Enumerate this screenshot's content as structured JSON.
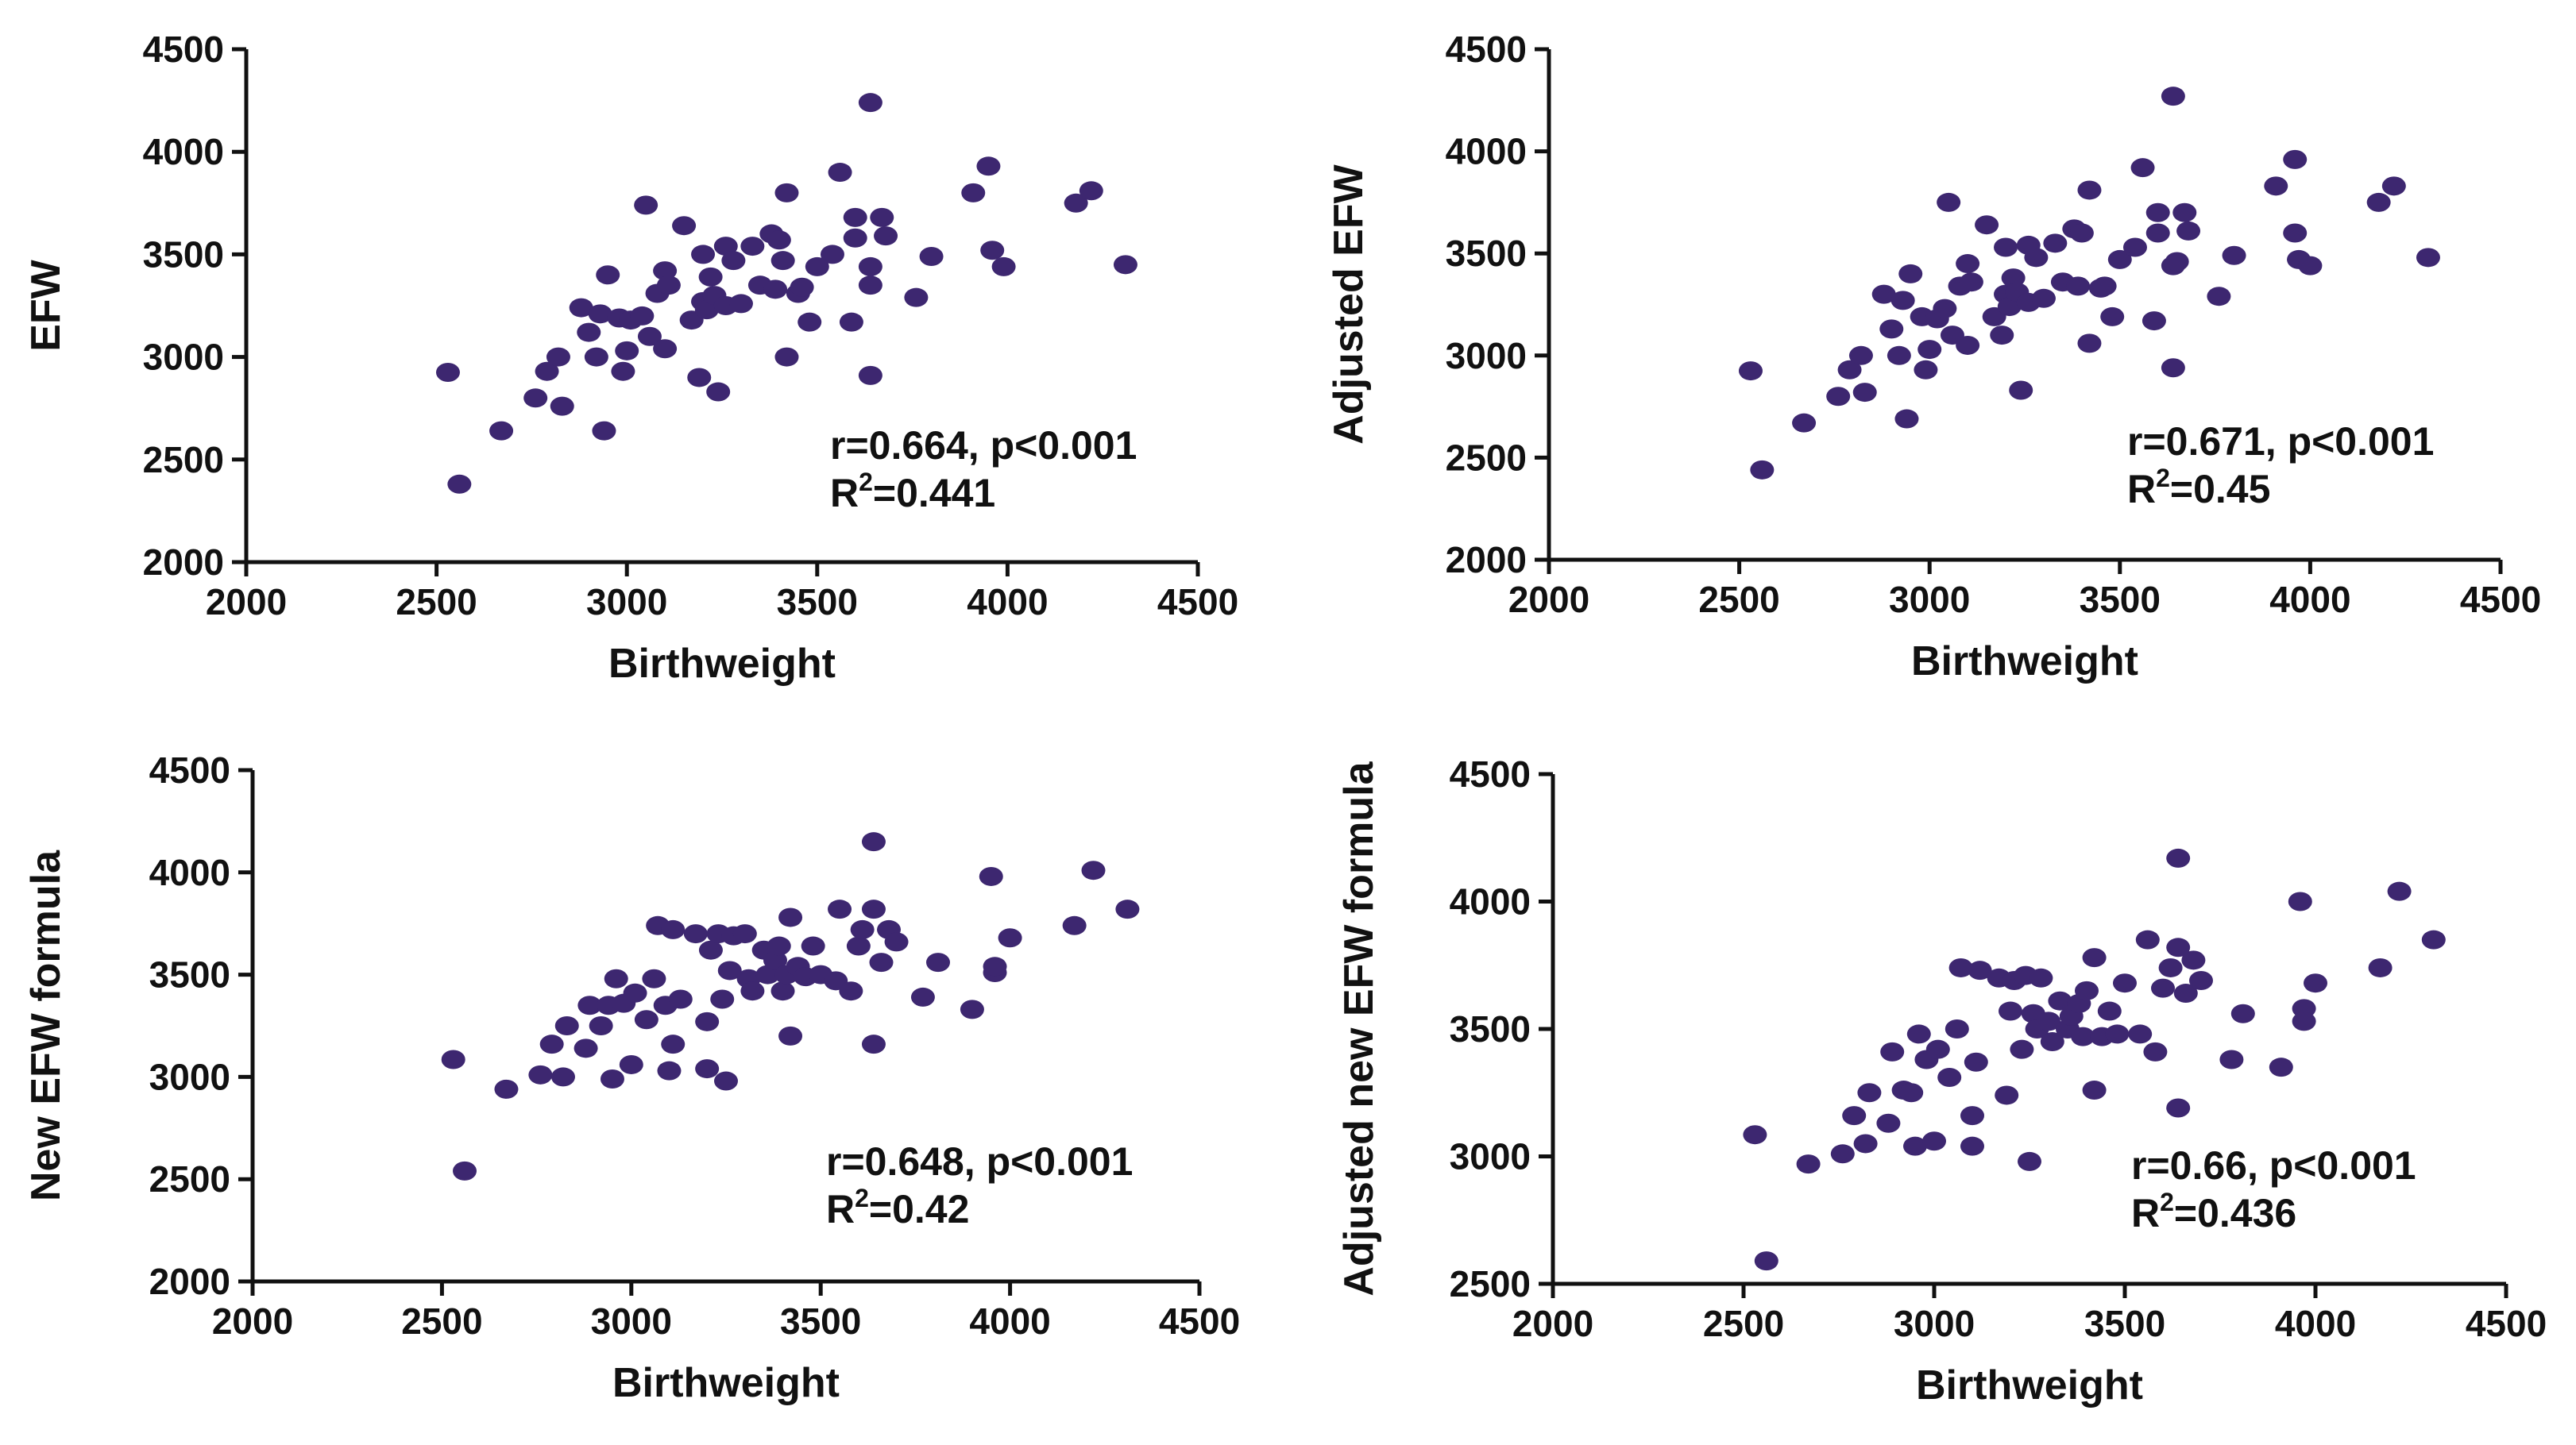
{
  "chart_data": [
    {
      "type": "scatter",
      "xlabel": "Birthweight",
      "ylabel": "EFW",
      "xlim": [
        2000,
        4500
      ],
      "ylim": [
        2000,
        4500
      ],
      "xticks": [
        "2000",
        "2500",
        "3000",
        "3500",
        "4000",
        "4500"
      ],
      "yticks": [
        "2000",
        "2500",
        "3000",
        "3500",
        "4000",
        "4500"
      ],
      "annotation_line1": "r=0.664, p<0.001",
      "annotation_r2_value": "=0.441",
      "color": "#3d2770",
      "points": [
        [
          2530,
          2925
        ],
        [
          2560,
          2380
        ],
        [
          2670,
          2640
        ],
        [
          2760,
          2800
        ],
        [
          2790,
          2930
        ],
        [
          2820,
          3000
        ],
        [
          2830,
          2760
        ],
        [
          2880,
          3240
        ],
        [
          2900,
          3120
        ],
        [
          2920,
          3000
        ],
        [
          2930,
          3210
        ],
        [
          2940,
          2640
        ],
        [
          2950,
          3400
        ],
        [
          2980,
          3190
        ],
        [
          2990,
          2930
        ],
        [
          3000,
          3030
        ],
        [
          3010,
          3180
        ],
        [
          3040,
          3200
        ],
        [
          3050,
          3740
        ],
        [
          3060,
          3100
        ],
        [
          3080,
          3310
        ],
        [
          3100,
          3040
        ],
        [
          3100,
          3420
        ],
        [
          3110,
          3350
        ],
        [
          3150,
          3640
        ],
        [
          3170,
          3180
        ],
        [
          3190,
          2900
        ],
        [
          3200,
          3500
        ],
        [
          3200,
          3270
        ],
        [
          3210,
          3230
        ],
        [
          3220,
          3390
        ],
        [
          3230,
          3300
        ],
        [
          3240,
          2830
        ],
        [
          3260,
          3540
        ],
        [
          3260,
          3250
        ],
        [
          3280,
          3470
        ],
        [
          3300,
          3260
        ],
        [
          3330,
          3540
        ],
        [
          3350,
          3350
        ],
        [
          3380,
          3600
        ],
        [
          3390,
          3330
        ],
        [
          3400,
          3570
        ],
        [
          3410,
          3470
        ],
        [
          3420,
          3800
        ],
        [
          3420,
          3000
        ],
        [
          3450,
          3310
        ],
        [
          3460,
          3340
        ],
        [
          3480,
          3170
        ],
        [
          3500,
          3440
        ],
        [
          3540,
          3500
        ],
        [
          3560,
          3900
        ],
        [
          3590,
          3170
        ],
        [
          3600,
          3580
        ],
        [
          3600,
          3680
        ],
        [
          3640,
          4240
        ],
        [
          3640,
          3350
        ],
        [
          3640,
          3440
        ],
        [
          3640,
          2910
        ],
        [
          3670,
          3680
        ],
        [
          3680,
          3590
        ],
        [
          3760,
          3290
        ],
        [
          3800,
          3490
        ],
        [
          3910,
          3800
        ],
        [
          3950,
          3930
        ],
        [
          3960,
          3520
        ],
        [
          3990,
          3440
        ],
        [
          4180,
          3750
        ],
        [
          4220,
          3810
        ],
        [
          4310,
          3450
        ]
      ]
    },
    {
      "type": "scatter",
      "xlabel": "Birthweight",
      "ylabel": "Adjusted EFW",
      "xlim": [
        2000,
        4500
      ],
      "ylim": [
        2000,
        4500
      ],
      "xticks": [
        "2000",
        "2500",
        "3000",
        "3500",
        "4000",
        "4500"
      ],
      "yticks": [
        "2000",
        "2500",
        "3000",
        "3500",
        "4000",
        "4500"
      ],
      "annotation_line1": "r=0.671, p<0.001",
      "annotation_r2_value": "=0.45",
      "color": "#3d2770",
      "points": [
        [
          2530,
          2925
        ],
        [
          2560,
          2440
        ],
        [
          2670,
          2670
        ],
        [
          2760,
          2800
        ],
        [
          2790,
          2930
        ],
        [
          2820,
          3000
        ],
        [
          2830,
          2820
        ],
        [
          2880,
          3300
        ],
        [
          2900,
          3130
        ],
        [
          2920,
          3000
        ],
        [
          2930,
          3270
        ],
        [
          2940,
          2690
        ],
        [
          2950,
          3400
        ],
        [
          2980,
          3190
        ],
        [
          2990,
          2930
        ],
        [
          3000,
          3030
        ],
        [
          3020,
          3180
        ],
        [
          3040,
          3230
        ],
        [
          3050,
          3750
        ],
        [
          3060,
          3100
        ],
        [
          3080,
          3340
        ],
        [
          3100,
          3050
        ],
        [
          3100,
          3450
        ],
        [
          3110,
          3360
        ],
        [
          3150,
          3640
        ],
        [
          3170,
          3190
        ],
        [
          3190,
          3100
        ],
        [
          3200,
          3530
        ],
        [
          3200,
          3300
        ],
        [
          3210,
          3240
        ],
        [
          3220,
          3380
        ],
        [
          3230,
          3310
        ],
        [
          3240,
          2830
        ],
        [
          3260,
          3540
        ],
        [
          3260,
          3260
        ],
        [
          3280,
          3480
        ],
        [
          3300,
          3280
        ],
        [
          3330,
          3550
        ],
        [
          3350,
          3360
        ],
        [
          3380,
          3620
        ],
        [
          3390,
          3340
        ],
        [
          3400,
          3600
        ],
        [
          3420,
          3810
        ],
        [
          3420,
          3060
        ],
        [
          3450,
          3330
        ],
        [
          3460,
          3340
        ],
        [
          3480,
          3190
        ],
        [
          3500,
          3470
        ],
        [
          3540,
          3530
        ],
        [
          3560,
          3920
        ],
        [
          3590,
          3170
        ],
        [
          3600,
          3600
        ],
        [
          3600,
          3700
        ],
        [
          3640,
          4270
        ],
        [
          3640,
          3440
        ],
        [
          3650,
          3460
        ],
        [
          3640,
          2940
        ],
        [
          3670,
          3700
        ],
        [
          3680,
          3610
        ],
        [
          3760,
          3290
        ],
        [
          3800,
          3490
        ],
        [
          3910,
          3830
        ],
        [
          3960,
          3960
        ],
        [
          3960,
          3600
        ],
        [
          3970,
          3470
        ],
        [
          4000,
          3440
        ],
        [
          4180,
          3750
        ],
        [
          4220,
          3830
        ],
        [
          4310,
          3480
        ]
      ]
    },
    {
      "type": "scatter",
      "xlabel": "Birthweight",
      "ylabel": "New EFW formula",
      "xlim": [
        2000,
        4500
      ],
      "ylim": [
        2000,
        4500
      ],
      "xticks": [
        "2000",
        "2500",
        "3000",
        "3500",
        "4000",
        "4500"
      ],
      "yticks": [
        "2000",
        "2500",
        "3000",
        "3500",
        "4000",
        "4500"
      ],
      "annotation_line1": "r=0.648, p<0.001",
      "annotation_r2_value": "=0.42",
      "color": "#3d2770",
      "points": [
        [
          2530,
          3085
        ],
        [
          2560,
          2540
        ],
        [
          2670,
          2940
        ],
        [
          2760,
          3010
        ],
        [
          2790,
          3160
        ],
        [
          2820,
          3000
        ],
        [
          2830,
          3250
        ],
        [
          2880,
          3140
        ],
        [
          2890,
          3350
        ],
        [
          2920,
          3250
        ],
        [
          2940,
          3350
        ],
        [
          2950,
          2990
        ],
        [
          2960,
          3480
        ],
        [
          2980,
          3360
        ],
        [
          3000,
          3060
        ],
        [
          3010,
          3410
        ],
        [
          3040,
          3280
        ],
        [
          3060,
          3480
        ],
        [
          3070,
          3740
        ],
        [
          3090,
          3350
        ],
        [
          3100,
          3030
        ],
        [
          3110,
          3160
        ],
        [
          3110,
          3720
        ],
        [
          3130,
          3380
        ],
        [
          3170,
          3700
        ],
        [
          3200,
          3040
        ],
        [
          3200,
          3270
        ],
        [
          3210,
          3620
        ],
        [
          3230,
          3700
        ],
        [
          3240,
          3380
        ],
        [
          3250,
          2980
        ],
        [
          3260,
          3520
        ],
        [
          3270,
          3690
        ],
        [
          3300,
          3700
        ],
        [
          3310,
          3480
        ],
        [
          3320,
          3420
        ],
        [
          3350,
          3620
        ],
        [
          3360,
          3500
        ],
        [
          3380,
          3570
        ],
        [
          3390,
          3640
        ],
        [
          3400,
          3420
        ],
        [
          3410,
          3500
        ],
        [
          3420,
          3200
        ],
        [
          3420,
          3780
        ],
        [
          3440,
          3540
        ],
        [
          3460,
          3490
        ],
        [
          3480,
          3640
        ],
        [
          3500,
          3500
        ],
        [
          3540,
          3470
        ],
        [
          3550,
          3820
        ],
        [
          3580,
          3420
        ],
        [
          3600,
          3640
        ],
        [
          3610,
          3720
        ],
        [
          3640,
          3820
        ],
        [
          3640,
          3160
        ],
        [
          3640,
          4150
        ],
        [
          3660,
          3560
        ],
        [
          3680,
          3720
        ],
        [
          3700,
          3660
        ],
        [
          3770,
          3390
        ],
        [
          3810,
          3560
        ],
        [
          3900,
          3330
        ],
        [
          3950,
          3980
        ],
        [
          3960,
          3510
        ],
        [
          3960,
          3540
        ],
        [
          4000,
          3680
        ],
        [
          4170,
          3740
        ],
        [
          4220,
          4010
        ],
        [
          4310,
          3820
        ]
      ]
    },
    {
      "type": "scatter",
      "xlabel": "Birthweight",
      "ylabel": "Adjusted new EFW formula",
      "xlim": [
        2000,
        4500
      ],
      "ylim": [
        2500,
        4500
      ],
      "xticks": [
        "2000",
        "2500",
        "3000",
        "3500",
        "4000",
        "4500"
      ],
      "yticks": [
        "2500",
        "3000",
        "3500",
        "4000",
        "4500"
      ],
      "annotation_line1": "r=0.66, p<0.001",
      "annotation_r2_value": "=0.436",
      "color": "#3d2770",
      "points": [
        [
          2530,
          3085
        ],
        [
          2560,
          2590
        ],
        [
          2670,
          2970
        ],
        [
          2760,
          3010
        ],
        [
          2790,
          3160
        ],
        [
          2820,
          3050
        ],
        [
          2830,
          3250
        ],
        [
          2880,
          3130
        ],
        [
          2890,
          3410
        ],
        [
          2920,
          3260
        ],
        [
          2940,
          3250
        ],
        [
          2950,
          3040
        ],
        [
          2960,
          3480
        ],
        [
          2980,
          3380
        ],
        [
          3000,
          3060
        ],
        [
          3010,
          3420
        ],
        [
          3040,
          3310
        ],
        [
          3060,
          3500
        ],
        [
          3070,
          3740
        ],
        [
          3100,
          3040
        ],
        [
          3100,
          3160
        ],
        [
          3110,
          3370
        ],
        [
          3120,
          3730
        ],
        [
          3170,
          3700
        ],
        [
          3190,
          3240
        ],
        [
          3200,
          3570
        ],
        [
          3210,
          3690
        ],
        [
          3230,
          3420
        ],
        [
          3240,
          3710
        ],
        [
          3250,
          2980
        ],
        [
          3260,
          3560
        ],
        [
          3270,
          3500
        ],
        [
          3280,
          3700
        ],
        [
          3300,
          3530
        ],
        [
          3310,
          3450
        ],
        [
          3330,
          3610
        ],
        [
          3350,
          3500
        ],
        [
          3360,
          3550
        ],
        [
          3380,
          3600
        ],
        [
          3390,
          3470
        ],
        [
          3400,
          3650
        ],
        [
          3420,
          3260
        ],
        [
          3420,
          3780
        ],
        [
          3440,
          3470
        ],
        [
          3460,
          3570
        ],
        [
          3480,
          3480
        ],
        [
          3500,
          3680
        ],
        [
          3540,
          3480
        ],
        [
          3560,
          3850
        ],
        [
          3580,
          3410
        ],
        [
          3600,
          3660
        ],
        [
          3620,
          3740
        ],
        [
          3640,
          4170
        ],
        [
          3640,
          3190
        ],
        [
          3640,
          3820
        ],
        [
          3660,
          3640
        ],
        [
          3680,
          3770
        ],
        [
          3700,
          3690
        ],
        [
          3780,
          3380
        ],
        [
          3810,
          3560
        ],
        [
          3910,
          3350
        ],
        [
          3960,
          4000
        ],
        [
          3970,
          3580
        ],
        [
          3970,
          3530
        ],
        [
          4000,
          3680
        ],
        [
          4170,
          3740
        ],
        [
          4220,
          4040
        ],
        [
          4310,
          3850
        ]
      ]
    }
  ]
}
